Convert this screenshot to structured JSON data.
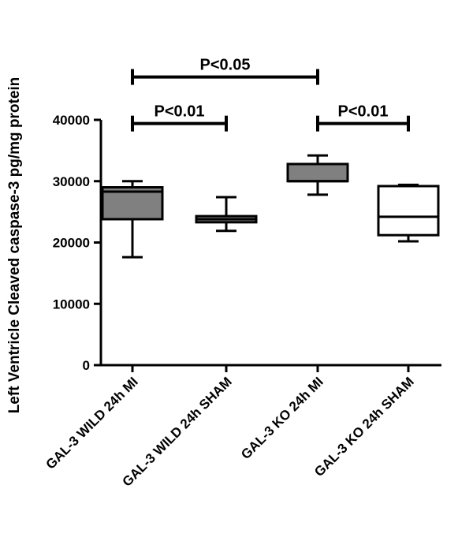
{
  "chart_data": {
    "type": "box",
    "ylabel": "Left  Ventricle Cleaved caspase-3 pg/mg protein",
    "ylim": [
      0,
      40000
    ],
    "yticks": [
      0,
      10000,
      20000,
      30000,
      40000
    ],
    "ytick_labels": [
      "0",
      "10000",
      "20000",
      "30000",
      "40000"
    ],
    "categories": [
      "GAL-3 WILD 24h MI",
      "GAL-3 WILD 24h SHAM",
      "GAL-3 KO 24h MI",
      "GAL-3 KO 24h SHAM"
    ],
    "boxes": [
      {
        "category": "GAL-3 WILD 24h MI",
        "min": 17600,
        "q1": 23800,
        "median": 28300,
        "q3": 29000,
        "max": 30000,
        "fill": "#808080"
      },
      {
        "category": "GAL-3 WILD 24h SHAM",
        "min": 21900,
        "q1": 23300,
        "median": 23800,
        "q3": 24300,
        "max": 27400,
        "fill": "#808080"
      },
      {
        "category": "GAL-3 KO 24h MI",
        "min": 27800,
        "q1": 30000,
        "median": 30000,
        "q3": 32800,
        "max": 34200,
        "fill": "#808080"
      },
      {
        "category": "GAL-3 KO 24h SHAM",
        "min": 20200,
        "q1": 21200,
        "median": 24200,
        "q3": 29200,
        "max": 29400,
        "fill": "#ffffff"
      }
    ],
    "annotations": [
      {
        "text": "P<0.05",
        "from": 0,
        "to": 2,
        "level": 47000
      },
      {
        "text": "P<0.01",
        "from": 0,
        "to": 1,
        "level": 39400
      },
      {
        "text": "P<0.01",
        "from": 2,
        "to": 3,
        "level": 39400
      }
    ]
  }
}
